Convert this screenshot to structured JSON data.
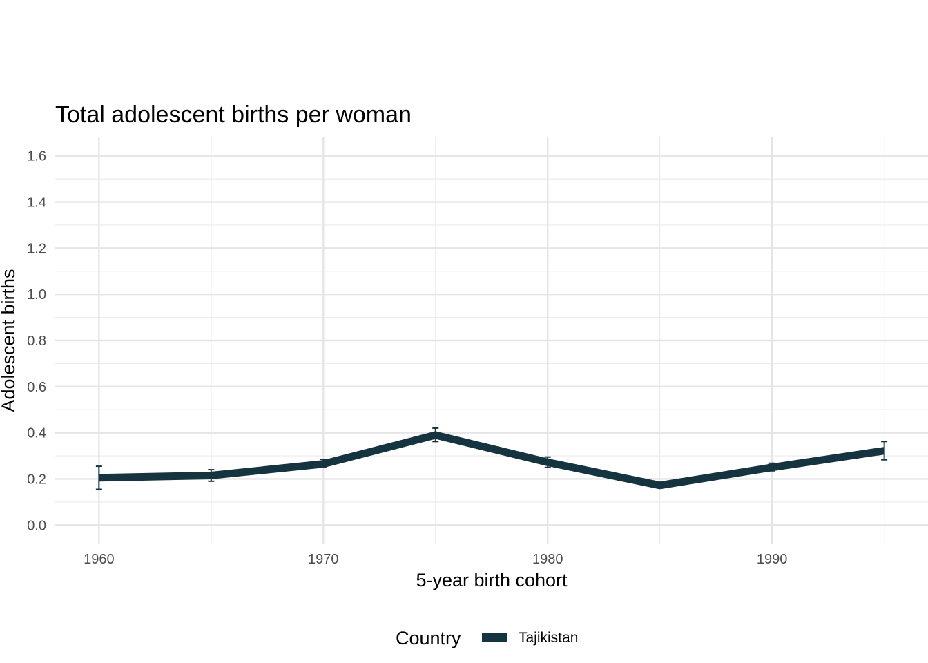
{
  "chart_data": {
    "type": "line",
    "title": "Total adolescent births per woman",
    "xlabel": "5-year birth cohort",
    "ylabel": "Adolescent births",
    "x_ticks": [
      1960,
      1970,
      1980,
      1990
    ],
    "x_tick_labels": [
      "1960",
      "1970",
      "1980",
      "1990"
    ],
    "y_ticks": [
      0.0,
      0.2,
      0.4,
      0.6,
      0.8,
      1.0,
      1.2,
      1.4,
      1.6
    ],
    "y_tick_labels": [
      "0.0",
      "0.2",
      "0.4",
      "0.6",
      "0.8",
      "1.0",
      "1.2",
      "1.4",
      "1.6"
    ],
    "xlim": [
      1958.05,
      1996.95
    ],
    "ylim": [
      -0.08,
      1.68
    ],
    "grid": true,
    "legend": {
      "title": "Country",
      "position": "bottom"
    },
    "series": [
      {
        "name": "Tajikistan",
        "color": "#15343f",
        "x": [
          1960,
          1965,
          1970,
          1975,
          1980,
          1985,
          1990,
          1995
        ],
        "y": [
          0.205,
          0.215,
          0.265,
          0.39,
          0.272,
          0.172,
          0.25,
          0.322
        ],
        "error_low": [
          0.155,
          0.19,
          0.25,
          0.362,
          0.25,
          0.165,
          0.235,
          0.283
        ],
        "error_high": [
          0.255,
          0.24,
          0.285,
          0.42,
          0.295,
          0.18,
          0.268,
          0.362
        ]
      }
    ]
  }
}
